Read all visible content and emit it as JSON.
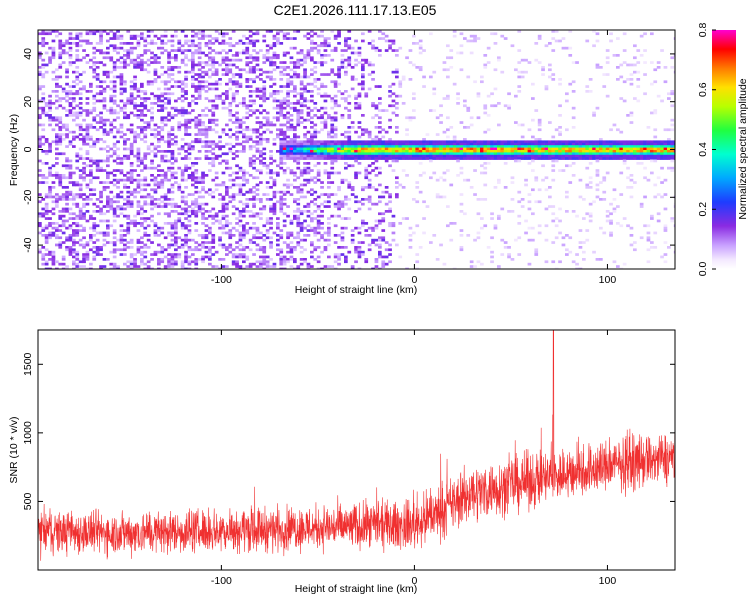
{
  "title": "C2E1.2026.111.17.13.E05",
  "colors": {
    "snr_line": "#f03030",
    "spectrogram_low": "#8a2be2",
    "axis": "#000000",
    "background": "#ffffff"
  },
  "chart_data": [
    {
      "type": "heatmap",
      "title": "C2E1.2026.111.17.13.E05",
      "xlabel": "Height of straight line (km)",
      "ylabel": "Frequency (Hz)",
      "xlim": [
        -195,
        135
      ],
      "ylim": [
        -50,
        50
      ],
      "xticks": [
        -100,
        0,
        100
      ],
      "xtick_labels": [
        "-100",
        "0",
        "100"
      ],
      "yticks": [
        -40,
        -20,
        0,
        20,
        40
      ],
      "ytick_labels": [
        "-40",
        "-20",
        "0",
        "20",
        "40"
      ],
      "grid": false,
      "description_signal": {
        "center_frequency_hz": 0,
        "signal_start_height_km": -70,
        "signal_end_height_km": 135,
        "noise_region_km": [
          -195,
          -10
        ]
      },
      "colorbar": {
        "label": "Normalized spectral amplitude",
        "range": [
          0.0,
          0.8
        ],
        "ticks": [
          0.0,
          0.2,
          0.4,
          0.6,
          0.8
        ],
        "tick_labels": [
          "0.0",
          "0.2",
          "0.4",
          "0.6",
          "0.8"
        ],
        "colormap": "rainbow (white-violet-blue-cyan-green-yellow-red-magenta)"
      }
    },
    {
      "type": "line",
      "xlabel": "Height of straight line (km)",
      "ylabel": "SNR (10 * v/v)",
      "xlim": [
        -195,
        135
      ],
      "ylim": [
        0,
        1750
      ],
      "xticks": [
        -100,
        0,
        100
      ],
      "xtick_labels": [
        "-100",
        "0",
        "100"
      ],
      "yticks": [
        500,
        1000,
        1500
      ],
      "ytick_labels": [
        "500",
        "1000",
        "1500"
      ],
      "grid": false,
      "series": [
        {
          "color": "#f03030",
          "trend_x": [
            -195,
            -150,
            -100,
            -50,
            0,
            10,
            30,
            60,
            100,
            135
          ],
          "trend_mean": [
            280,
            270,
            290,
            310,
            330,
            400,
            560,
            650,
            760,
            820
          ],
          "trend_spread": [
            230,
            230,
            230,
            240,
            260,
            280,
            300,
            300,
            280,
            280
          ],
          "spike": {
            "x": 72,
            "y": 1750
          }
        }
      ]
    }
  ]
}
